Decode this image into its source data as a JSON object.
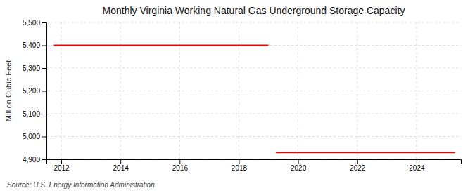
{
  "chart_data": {
    "type": "line",
    "title": "Monthly Virginia Working Natural Gas Underground Storage Capacity",
    "y_label": "Million Cubic Feet",
    "annotations": [
      "Source: U.S. Energy Information Administration"
    ],
    "series": [
      {
        "color": "#FF0000",
        "x": [
          2011.75,
          2019.0
        ],
        "values": [
          5400,
          5400
        ]
      },
      {
        "color": "#FF0000",
        "x": [
          2019.25,
          2025.3
        ],
        "values": [
          4930,
          4930
        ]
      }
    ],
    "xlim": [
      2011.5,
      2025.5
    ],
    "xticks": [
      2012,
      2014,
      2016,
      2018,
      2020,
      2022,
      2024
    ],
    "ylim": [
      4900,
      5500
    ],
    "yticks": [
      {
        "value": 4900,
        "label": "4,900"
      },
      {
        "value": 5000,
        "label": "5,000"
      },
      {
        "value": 5100,
        "label": "5,100"
      },
      {
        "value": 5200,
        "label": "5,200"
      },
      {
        "value": 5300,
        "label": "5,300"
      },
      {
        "value": 5400,
        "label": "5,400"
      },
      {
        "value": 5500,
        "label": "5,500"
      }
    ],
    "grid": true
  }
}
